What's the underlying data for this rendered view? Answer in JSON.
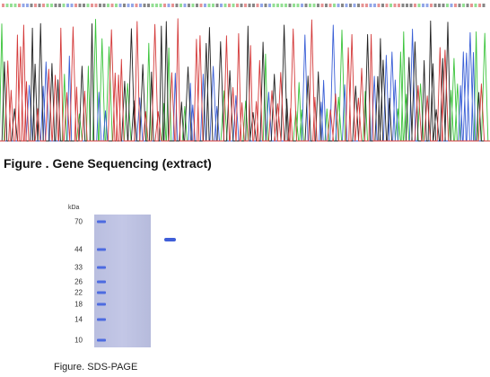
{
  "sequencing_figure": {
    "caption": "Figure . Gene Sequencing (extract)",
    "trace_colors": {
      "A": "#3cc43c",
      "C": "#3a5fd6",
      "G": "#222222",
      "T": "#d43a3a"
    }
  },
  "sds_page_figure": {
    "caption": "Figure. SDS-PAGE",
    "unit_label": "kDa",
    "markers": [
      {
        "label": "70",
        "kda": 70
      },
      {
        "label": "44",
        "kda": 44
      },
      {
        "label": "33",
        "kda": 33
      },
      {
        "label": "26",
        "kda": 26
      },
      {
        "label": "22",
        "kda": 22
      },
      {
        "label": "18",
        "kda": 18
      },
      {
        "label": "14",
        "kda": 14
      },
      {
        "label": "10",
        "kda": 10
      }
    ],
    "sample_band_kda": 52,
    "gel_color": "#c0c4e4",
    "band_color": "#3f5ed8"
  }
}
